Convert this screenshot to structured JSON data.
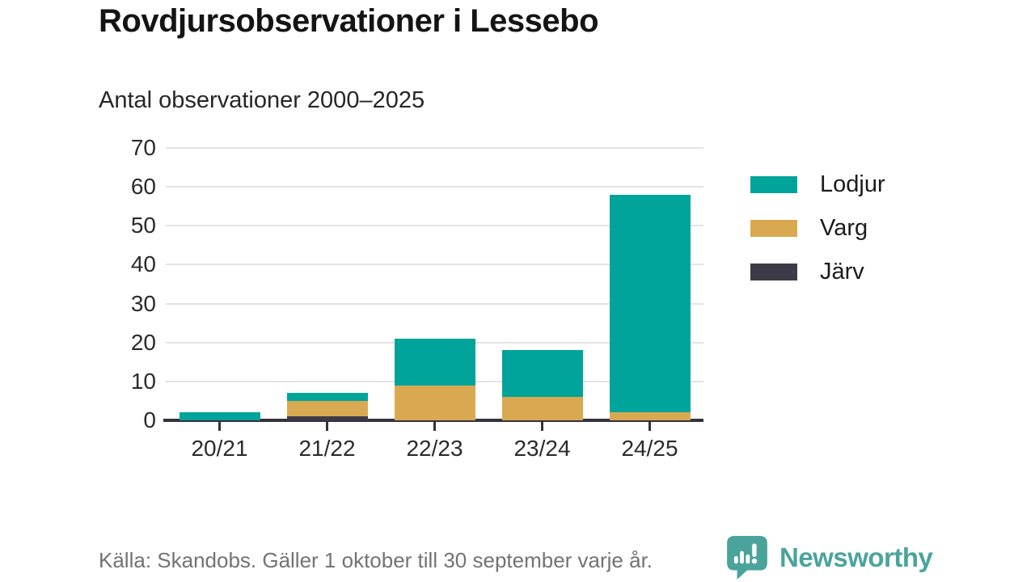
{
  "header": {
    "title": "Rovdjursobservationer i Lessebo",
    "subtitle": "Antal observationer 2000–2025"
  },
  "chart_data": {
    "type": "bar",
    "stacked": true,
    "title": "Rovdjursobservationer i Lessebo",
    "subtitle": "Antal observationer 2000–2025",
    "categories": [
      "20/21",
      "21/22",
      "22/23",
      "23/24",
      "24/25"
    ],
    "series": [
      {
        "name": "Lodjur",
        "color": "#00a49a",
        "values": [
          2,
          2,
          12,
          12,
          56
        ]
      },
      {
        "name": "Varg",
        "color": "#d9a951",
        "values": [
          0,
          4,
          9,
          6,
          2
        ]
      },
      {
        "name": "Järv",
        "color": "#3d3b48",
        "values": [
          0,
          1,
          0,
          0,
          0
        ]
      }
    ],
    "stack_order_bottom_to_top": [
      "Järv",
      "Varg",
      "Lodjur"
    ],
    "totals": [
      2,
      7,
      21,
      18,
      58
    ],
    "xlabel": "",
    "ylabel": "",
    "ylim": [
      0,
      70
    ],
    "yticks": [
      0,
      10,
      20,
      30,
      40,
      50,
      60,
      70
    ],
    "grid": true,
    "legend_position": "right"
  },
  "footer": {
    "source_note": "Källa: Skandobs. Gäller 1 oktober till 30 september varje år."
  },
  "branding": {
    "name": "Newsworthy",
    "color": "#4aa49c",
    "icon": "newsworthy-logo-icon"
  },
  "colors": {
    "lodjur": "#00a49a",
    "varg": "#d9a951",
    "jarv": "#3d3b48",
    "gridline": "#e3e3e3",
    "axis": "#34323c",
    "text_dark": "#141414",
    "text_muted": "#737373"
  }
}
